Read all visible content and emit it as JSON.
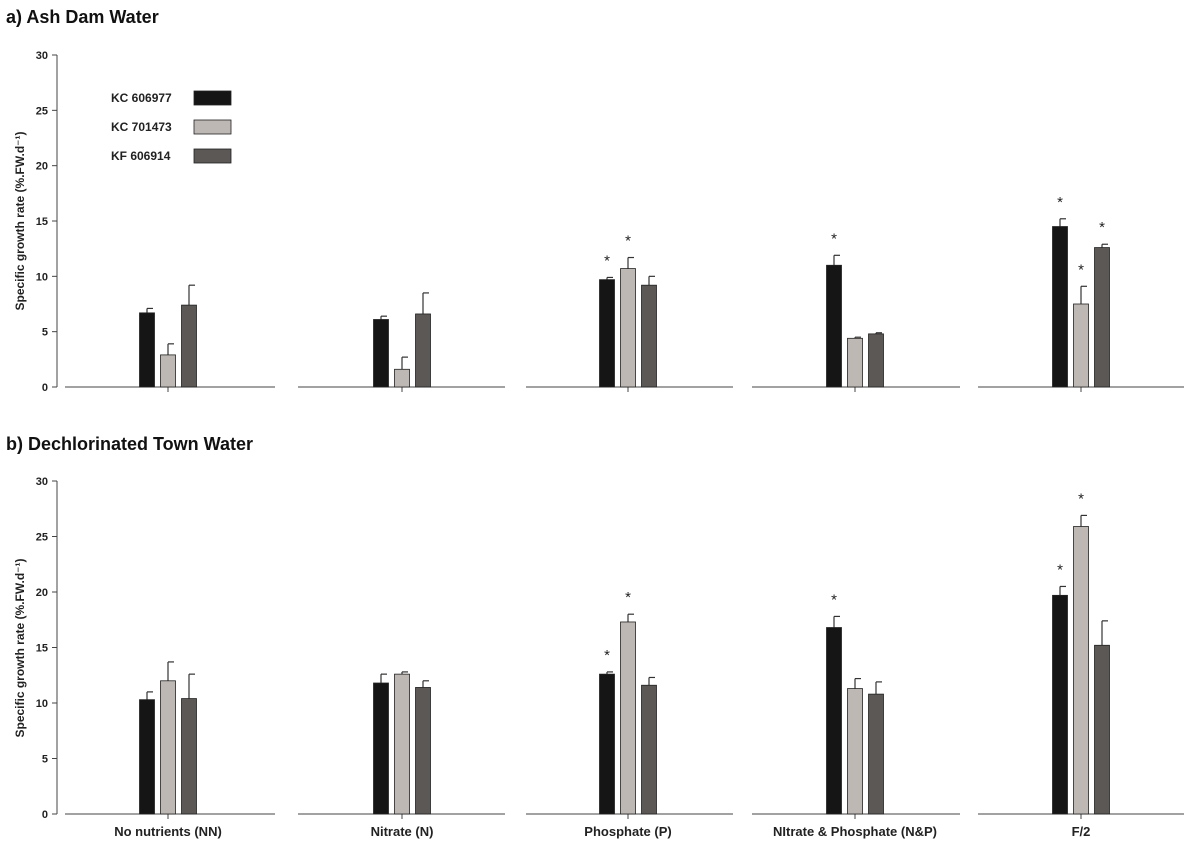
{
  "chart_data": [
    {
      "type": "bar",
      "title": "a) Ash Dam Water",
      "ylabel": "Specific growth rate (%.FW.d⁻¹)",
      "xlabel": "",
      "ylim": [
        0,
        30
      ],
      "yticks": [
        0,
        5,
        10,
        15,
        20,
        25,
        30
      ],
      "show_category_labels": false,
      "categories": [
        "No nutrients (NN)",
        "Nitrate (N)",
        "Phosphate (P)",
        "NItrate & Phosphate (N&P)",
        "F/2"
      ],
      "series": [
        {
          "name": "KC 606977",
          "color": "#151515",
          "values": [
            6.7,
            6.1,
            9.7,
            11.0,
            14.5
          ],
          "errors": [
            0.4,
            0.3,
            0.2,
            0.9,
            0.7
          ]
        },
        {
          "name": "KC 701473",
          "color": "#bdb8b3",
          "values": [
            2.9,
            1.6,
            10.7,
            4.4,
            7.5
          ],
          "errors": [
            1.0,
            1.1,
            1.0,
            0.1,
            1.6
          ]
        },
        {
          "name": "KF 606914",
          "color": "#5c5856",
          "values": [
            7.4,
            6.6,
            9.2,
            4.8,
            12.6
          ],
          "errors": [
            1.8,
            1.9,
            0.8,
            0.1,
            0.3
          ]
        }
      ],
      "significance": [
        [
          false,
          false,
          false
        ],
        [
          false,
          false,
          false
        ],
        [
          true,
          true,
          false
        ],
        [
          true,
          false,
          false
        ],
        [
          true,
          true,
          true
        ]
      ],
      "significance_symbol": "*",
      "legend": {
        "placement": "top-left"
      },
      "grid": false
    },
    {
      "type": "bar",
      "title": "b) Dechlorinated Town Water",
      "ylabel": "Specific growth rate (%.FW.d⁻¹)",
      "xlabel": "",
      "ylim": [
        0,
        30
      ],
      "yticks": [
        0,
        5,
        10,
        15,
        20,
        25,
        30
      ],
      "show_category_labels": true,
      "categories": [
        "No nutrients (NN)",
        "Nitrate (N)",
        "Phosphate (P)",
        "NItrate & Phosphate (N&P)",
        "F/2"
      ],
      "series": [
        {
          "name": "KC 606977",
          "color": "#151515",
          "values": [
            10.3,
            11.8,
            12.6,
            16.8,
            19.7
          ],
          "errors": [
            0.7,
            0.8,
            0.2,
            1.0,
            0.8
          ]
        },
        {
          "name": "KC 701473",
          "color": "#bdb8b3",
          "values": [
            12.0,
            12.6,
            17.3,
            11.3,
            25.9
          ],
          "errors": [
            1.7,
            0.2,
            0.7,
            0.9,
            1.0
          ]
        },
        {
          "name": "KF 606914",
          "color": "#5c5856",
          "values": [
            10.4,
            11.4,
            11.6,
            10.8,
            15.2
          ],
          "errors": [
            2.2,
            0.6,
            0.7,
            1.1,
            2.2
          ]
        }
      ],
      "significance": [
        [
          false,
          false,
          false
        ],
        [
          false,
          false,
          false
        ],
        [
          true,
          true,
          false
        ],
        [
          true,
          false,
          false
        ],
        [
          true,
          true,
          false
        ]
      ],
      "significance_symbol": "*",
      "grid": false
    }
  ]
}
